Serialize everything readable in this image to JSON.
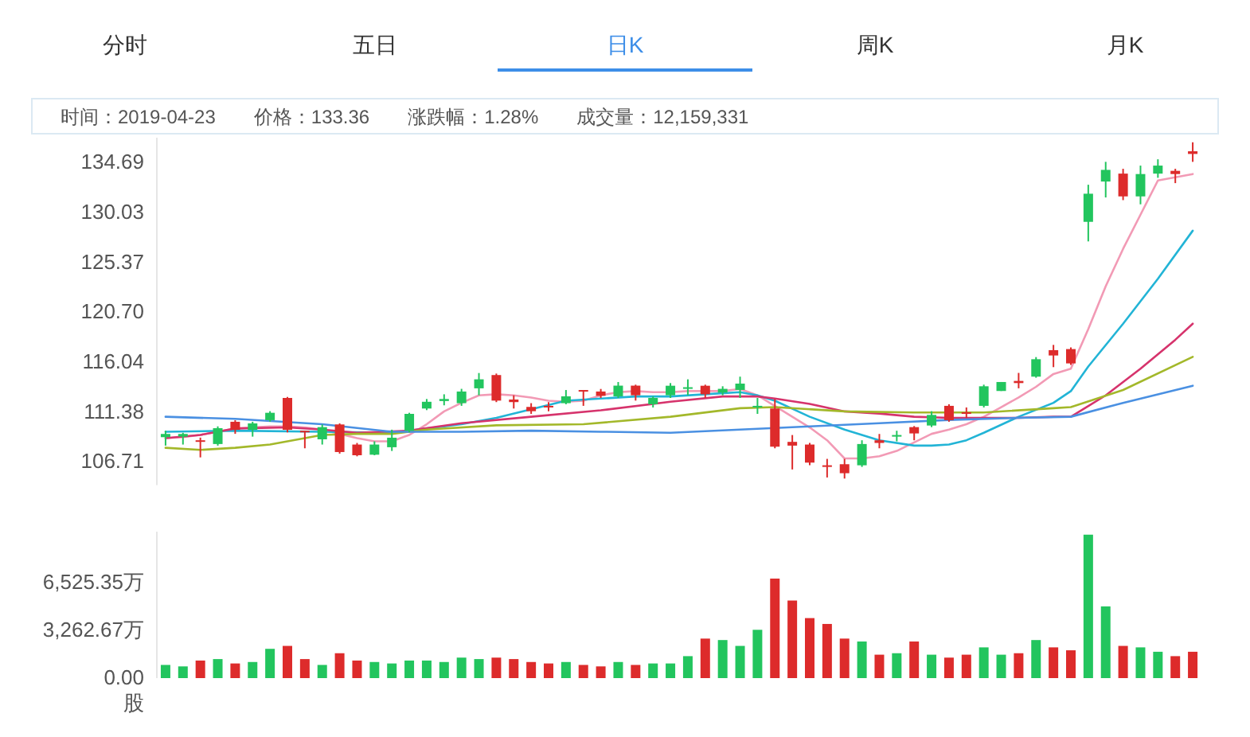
{
  "chart_data": [
    {
      "type": "other",
      "categories": [
        "分时",
        "五日",
        "日K",
        "周K",
        "月K"
      ],
      "colors": [
        "#333333",
        "#333333",
        "#3d8ee8",
        "#333333",
        "#333333"
      ],
      "annotations": [
        "时间：2019-04-23",
        "价格：133.36",
        "涨跌幅：1.28%",
        "成交量：12,159,331"
      ]
    },
    {
      "type": "candlestick",
      "categories": [
        null,
        null,
        null,
        null,
        null,
        null,
        null,
        null,
        null,
        null,
        null,
        null,
        null,
        null,
        null,
        null,
        null,
        null,
        null,
        null,
        null,
        null,
        null,
        null,
        null,
        null,
        null,
        null,
        null,
        null,
        null,
        null,
        null,
        null,
        null,
        null,
        null,
        null,
        null,
        null,
        null,
        null,
        null,
        null,
        null,
        null,
        null,
        null,
        null,
        null,
        null,
        null,
        null,
        null,
        null,
        null,
        null,
        null,
        null,
        null
      ],
      "ylim": [
        104.5,
        137
      ],
      "yticks": [
        106.71,
        111.38,
        116.04,
        {
          "value": 120.7,
          "label": "120.70"
        },
        125.37,
        130.03,
        134.69
      ],
      "ohlc": [
        [
          108.99,
          109.59,
          108.2,
          109.29
        ],
        [
          109.04,
          109.4,
          108.3,
          109.29
        ],
        [
          108.7,
          108.95,
          107.1,
          108.6
        ],
        [
          108.35,
          110.0,
          108.2,
          109.83
        ],
        [
          110.43,
          110.58,
          109.3,
          109.68
        ],
        [
          109.68,
          110.43,
          109.04,
          110.28
        ],
        [
          110.58,
          111.42,
          110.43,
          111.27
        ],
        [
          112.66,
          112.76,
          109.44,
          109.68
        ],
        [
          109.59,
          109.59,
          107.95,
          109.44
        ],
        [
          108.79,
          110.18,
          108.3,
          109.93
        ],
        [
          110.18,
          110.28,
          107.45,
          107.6
        ],
        [
          108.3,
          108.45,
          107.2,
          107.3
        ],
        [
          107.35,
          108.6,
          107.3,
          108.3
        ],
        [
          108.05,
          109.69,
          107.7,
          108.94
        ],
        [
          109.59,
          111.27,
          109.44,
          111.17
        ],
        [
          111.67,
          112.56,
          111.52,
          112.3
        ],
        [
          112.37,
          113.0,
          111.97,
          112.56
        ],
        [
          112.17,
          113.51,
          111.92,
          113.26
        ],
        [
          113.56,
          114.99,
          112.91,
          114.4
        ],
        [
          114.8,
          114.94,
          112.27,
          112.41
        ],
        [
          112.51,
          112.91,
          111.67,
          112.27
        ],
        [
          111.82,
          112.17,
          111.17,
          111.42
        ],
        [
          111.92,
          112.27,
          111.42,
          111.77
        ],
        [
          112.17,
          113.4,
          112.07,
          112.81
        ],
        [
          113.4,
          113.4,
          111.92,
          113.26
        ],
        [
          113.26,
          113.5,
          112.66,
          112.86
        ],
        [
          112.81,
          114.15,
          112.66,
          113.81
        ],
        [
          113.81,
          113.9,
          112.41,
          112.91
        ],
        [
          112.07,
          112.81,
          111.77,
          112.66
        ],
        [
          112.91,
          114.05,
          112.66,
          113.8
        ],
        [
          113.51,
          114.4,
          112.91,
          113.66
        ],
        [
          113.8,
          113.9,
          112.66,
          113.0
        ],
        [
          113.16,
          113.75,
          112.91,
          113.51
        ],
        [
          113.41,
          114.65,
          112.66,
          114.0
        ],
        [
          111.82,
          112.66,
          111.17,
          111.92
        ],
        [
          111.67,
          112.56,
          107.95,
          108.1
        ],
        [
          108.55,
          109.19,
          105.97,
          108.2
        ],
        [
          108.3,
          108.45,
          106.36,
          106.61
        ],
        [
          106.36,
          106.96,
          105.22,
          106.21
        ],
        [
          106.46,
          106.96,
          105.12,
          105.62
        ],
        [
          106.36,
          108.7,
          106.21,
          108.35
        ],
        [
          108.7,
          109.29,
          107.95,
          108.45
        ],
        [
          109.04,
          109.59,
          108.6,
          109.19
        ],
        [
          109.93,
          110.03,
          108.7,
          109.34
        ],
        [
          110.08,
          111.42,
          109.93,
          111.07
        ],
        [
          111.92,
          112.07,
          110.43,
          110.58
        ],
        [
          111.32,
          111.77,
          110.78,
          111.17
        ],
        [
          111.92,
          113.9,
          111.77,
          113.75
        ],
        [
          113.31,
          114.15,
          113.31,
          114.15
        ],
        [
          114.25,
          115.0,
          113.56,
          114.05
        ],
        [
          114.65,
          116.48,
          114.55,
          116.28
        ],
        [
          117.13,
          117.62,
          115.54,
          116.63
        ],
        [
          117.23,
          117.38,
          115.74,
          115.89
        ],
        [
          129.13,
          132.6,
          127.3,
          131.76
        ],
        [
          132.9,
          134.74,
          131.41,
          133.99
        ],
        [
          133.64,
          134.09,
          131.16,
          131.51
        ],
        [
          131.51,
          134.39,
          130.77,
          133.6
        ],
        [
          133.64,
          134.98,
          133.25,
          134.39
        ],
        [
          133.9,
          134.09,
          132.75,
          133.6
        ],
        [
          135.73,
          136.57,
          134.74,
          135.48
        ]
      ],
      "colors": [
        "#22c55e",
        "#22c55e",
        "#dd2b2b",
        "#22c55e",
        "#dd2b2b",
        "#22c55e",
        "#22c55e",
        "#dd2b2b",
        "#dd2b2b",
        "#22c55e",
        "#dd2b2b",
        "#dd2b2b",
        "#22c55e",
        "#22c55e",
        "#22c55e",
        "#22c55e",
        "#22c55e",
        "#22c55e",
        "#22c55e",
        "#dd2b2b",
        "#dd2b2b",
        "#dd2b2b",
        "#dd2b2b",
        "#22c55e",
        "#dd2b2b",
        "#dd2b2b",
        "#22c55e",
        "#dd2b2b",
        "#22c55e",
        "#22c55e",
        "#22c55e",
        "#dd2b2b",
        "#22c55e",
        "#22c55e",
        "#22c55e",
        "#dd2b2b",
        "#dd2b2b",
        "#dd2b2b",
        "#dd2b2b",
        "#dd2b2b",
        "#22c55e",
        "#dd2b2b",
        "#22c55e",
        "#dd2b2b",
        "#22c55e",
        "#dd2b2b",
        "#dd2b2b",
        "#22c55e",
        "#22c55e",
        "#dd2b2b",
        "#22c55e",
        "#dd2b2b",
        "#dd2b2b",
        "#22c55e",
        "#22c55e",
        "#dd2b2b",
        "#22c55e",
        "#22c55e",
        "#dd2b2b",
        "#dd2b2b"
      ],
      "series": [
        {
          "type": "line",
          "color": "#f29ab5",
          "values": [
            108.9,
            109.0,
            109.2,
            109.5,
            109.8,
            109.9,
            110.0,
            110.0,
            109.9,
            109.7,
            109.3,
            108.9,
            108.6,
            108.6,
            109.2,
            110.2,
            111.4,
            112.2,
            112.9,
            113.0,
            112.9,
            112.7,
            112.4,
            112.3,
            112.4,
            112.9,
            113.2,
            113.3,
            113.2,
            113.2,
            113.3,
            113.3,
            113.3,
            113.5,
            112.9,
            111.9,
            110.9,
            109.9,
            108.7,
            107.0,
            107.0,
            107.2,
            107.7,
            108.5,
            109.3,
            109.7,
            110.2,
            110.9,
            111.8,
            112.7,
            113.7,
            114.9,
            115.4,
            119.1,
            123.1,
            126.6,
            129.8,
            133.0,
            133.3,
            133.6
          ]
        },
        {
          "type": "line",
          "color": "#22b4d6",
          "values": [
            109.5,
            null,
            null,
            null,
            109.6,
            null,
            null,
            null,
            null,
            109.5,
            null,
            null,
            null,
            109.4,
            null,
            109.8,
            null,
            110.2,
            null,
            110.8,
            null,
            111.6,
            null,
            112.4,
            null,
            112.6,
            null,
            112.8,
            null,
            112.8,
            null,
            113.0,
            null,
            113.2,
            112.9,
            112.4,
            null,
            110.9,
            null,
            109.7,
            null,
            108.7,
            null,
            108.2,
            108.2,
            108.3,
            108.7,
            109.4,
            null,
            110.9,
            null,
            112.2,
            113.3,
            115.6,
            null,
            119.6,
            null,
            123.8,
            null,
            128.3
          ]
        },
        {
          "type": "line",
          "color": "#d6336c",
          "values": [
            108.9,
            null,
            109.2,
            null,
            109.8,
            null,
            null,
            109.9,
            null,
            109.7,
            null,
            109.4,
            null,
            null,
            109.6,
            null,
            null,
            110.3,
            null,
            null,
            null,
            110.9,
            null,
            null,
            null,
            111.5,
            null,
            null,
            null,
            112.3,
            null,
            null,
            112.8,
            null,
            112.8,
            112.6,
            null,
            112.1,
            null,
            111.4,
            null,
            111.2,
            null,
            110.9,
            null,
            110.8,
            null,
            110.8,
            null,
            110.8,
            null,
            110.9,
            110.9,
            null,
            112.9,
            null,
            115.4,
            null,
            118.1,
            119.6
          ]
        },
        {
          "type": "line",
          "color": "#a3b82a",
          "values": [
            108.0,
            null,
            107.8,
            null,
            108.0,
            null,
            108.3,
            null,
            108.9,
            109.2,
            null,
            109.3,
            null,
            109.3,
            null,
            109.7,
            null,
            null,
            null,
            110.1,
            null,
            null,
            null,
            null,
            110.2,
            null,
            null,
            null,
            null,
            110.9,
            null,
            null,
            null,
            111.7,
            null,
            111.8,
            null,
            null,
            null,
            111.4,
            null,
            null,
            null,
            111.3,
            null,
            null,
            null,
            111.3,
            null,
            null,
            null,
            111.7,
            111.8,
            null,
            null,
            113.4,
            null,
            null,
            null,
            116.5
          ]
        },
        {
          "type": "line",
          "color": "#4a90e2",
          "values": [
            110.9,
            null,
            null,
            null,
            110.7,
            null,
            null,
            null,
            null,
            110.2,
            null,
            null,
            null,
            109.5,
            null,
            null,
            null,
            109.5,
            null,
            null,
            null,
            109.6,
            null,
            null,
            null,
            109.5,
            null,
            null,
            null,
            109.4,
            null,
            null,
            null,
            109.7,
            null,
            null,
            null,
            110.0,
            null,
            null,
            null,
            110.3,
            null,
            null,
            null,
            110.6,
            null,
            null,
            null,
            110.8,
            null,
            null,
            110.9,
            null,
            null,
            112.2,
            null,
            null,
            null,
            113.8
          ]
        }
      ]
    },
    {
      "type": "bar",
      "categories": [
        null,
        null,
        null,
        null,
        null,
        null,
        null,
        null,
        null,
        null,
        null,
        null,
        null,
        null,
        null,
        null,
        null,
        null,
        null,
        null,
        null,
        null,
        null,
        null,
        null,
        null,
        null,
        null,
        null,
        null,
        null,
        null,
        null,
        null,
        null,
        null,
        null,
        null,
        null,
        null,
        null,
        null,
        null,
        null,
        null,
        null,
        null,
        null,
        null,
        null,
        null,
        null,
        null,
        null,
        null,
        null,
        null,
        null,
        null,
        null
      ],
      "ylabel": "股",
      "ylim": [
        0,
        10000
      ],
      "yticks": [
        {
          "value": 0,
          "label": "0.00"
        },
        {
          "value": 3262.67,
          "label": "3,262.67万"
        },
        {
          "value": 6525.35,
          "label": "6,525.35万"
        }
      ],
      "values": [
        900,
        800,
        1200,
        1300,
        1000,
        1100,
        2000,
        2200,
        1300,
        900,
        1700,
        1200,
        1100,
        1000,
        1200,
        1200,
        1100,
        1400,
        1300,
        1400,
        1300,
        1100,
        1000,
        1100,
        900,
        800,
        1100,
        900,
        1000,
        1000,
        1500,
        2700,
        2600,
        2200,
        3300,
        6800,
        5300,
        4100,
        3700,
        2700,
        2500,
        1600,
        1700,
        2500,
        1600,
        1400,
        1600,
        2100,
        1600,
        1700,
        2600,
        2100,
        1900,
        9800,
        4900,
        2200,
        2100,
        1800,
        1500,
        1800
      ],
      "colors": [
        "#22c55e",
        "#22c55e",
        "#dd2b2b",
        "#22c55e",
        "#dd2b2b",
        "#22c55e",
        "#22c55e",
        "#dd2b2b",
        "#dd2b2b",
        "#22c55e",
        "#dd2b2b",
        "#dd2b2b",
        "#22c55e",
        "#22c55e",
        "#22c55e",
        "#22c55e",
        "#22c55e",
        "#22c55e",
        "#22c55e",
        "#dd2b2b",
        "#dd2b2b",
        "#dd2b2b",
        "#dd2b2b",
        "#22c55e",
        "#dd2b2b",
        "#dd2b2b",
        "#22c55e",
        "#dd2b2b",
        "#22c55e",
        "#22c55e",
        "#22c55e",
        "#dd2b2b",
        "#22c55e",
        "#22c55e",
        "#22c55e",
        "#dd2b2b",
        "#dd2b2b",
        "#dd2b2b",
        "#dd2b2b",
        "#dd2b2b",
        "#22c55e",
        "#dd2b2b",
        "#22c55e",
        "#dd2b2b",
        "#22c55e",
        "#dd2b2b",
        "#dd2b2b",
        "#22c55e",
        "#22c55e",
        "#dd2b2b",
        "#22c55e",
        "#dd2b2b",
        "#dd2b2b",
        "#22c55e",
        "#22c55e",
        "#dd2b2b",
        "#22c55e",
        "#22c55e",
        "#dd2b2b",
        "#dd2b2b"
      ]
    }
  ]
}
